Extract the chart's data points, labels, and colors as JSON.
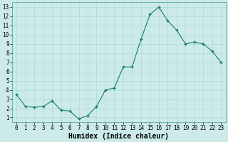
{
  "x": [
    0,
    1,
    2,
    3,
    4,
    5,
    6,
    7,
    8,
    9,
    10,
    11,
    12,
    13,
    14,
    15,
    16,
    17,
    18,
    19,
    20,
    21,
    22,
    23
  ],
  "y": [
    3.5,
    2.2,
    2.1,
    2.2,
    2.8,
    1.8,
    1.7,
    0.85,
    1.2,
    2.2,
    4.0,
    4.2,
    6.5,
    6.5,
    9.5,
    12.2,
    13.0,
    11.5,
    10.5,
    9.0,
    9.2,
    9.0,
    8.2,
    7.0
  ],
  "line_color": "#1a7a6e",
  "marker_color": "#1a7a6e",
  "bg_color": "#cceaea",
  "grid_color": "#b0d8d8",
  "xlabel": "Humidex (Indice chaleur)",
  "xlabel_fontsize": 7,
  "xlim": [
    -0.5,
    23.5
  ],
  "ylim": [
    0.5,
    13.5
  ],
  "yticks": [
    1,
    2,
    3,
    4,
    5,
    6,
    7,
    8,
    9,
    10,
    11,
    12,
    13
  ],
  "xtick_labels": [
    "0",
    "1",
    "2",
    "3",
    "4",
    "5",
    "6",
    "7",
    "8",
    "9",
    "10",
    "11",
    "12",
    "13",
    "14",
    "15",
    "16",
    "17",
    "18",
    "19",
    "20",
    "21",
    "22",
    "23"
  ],
  "tick_fontsize": 5.5
}
